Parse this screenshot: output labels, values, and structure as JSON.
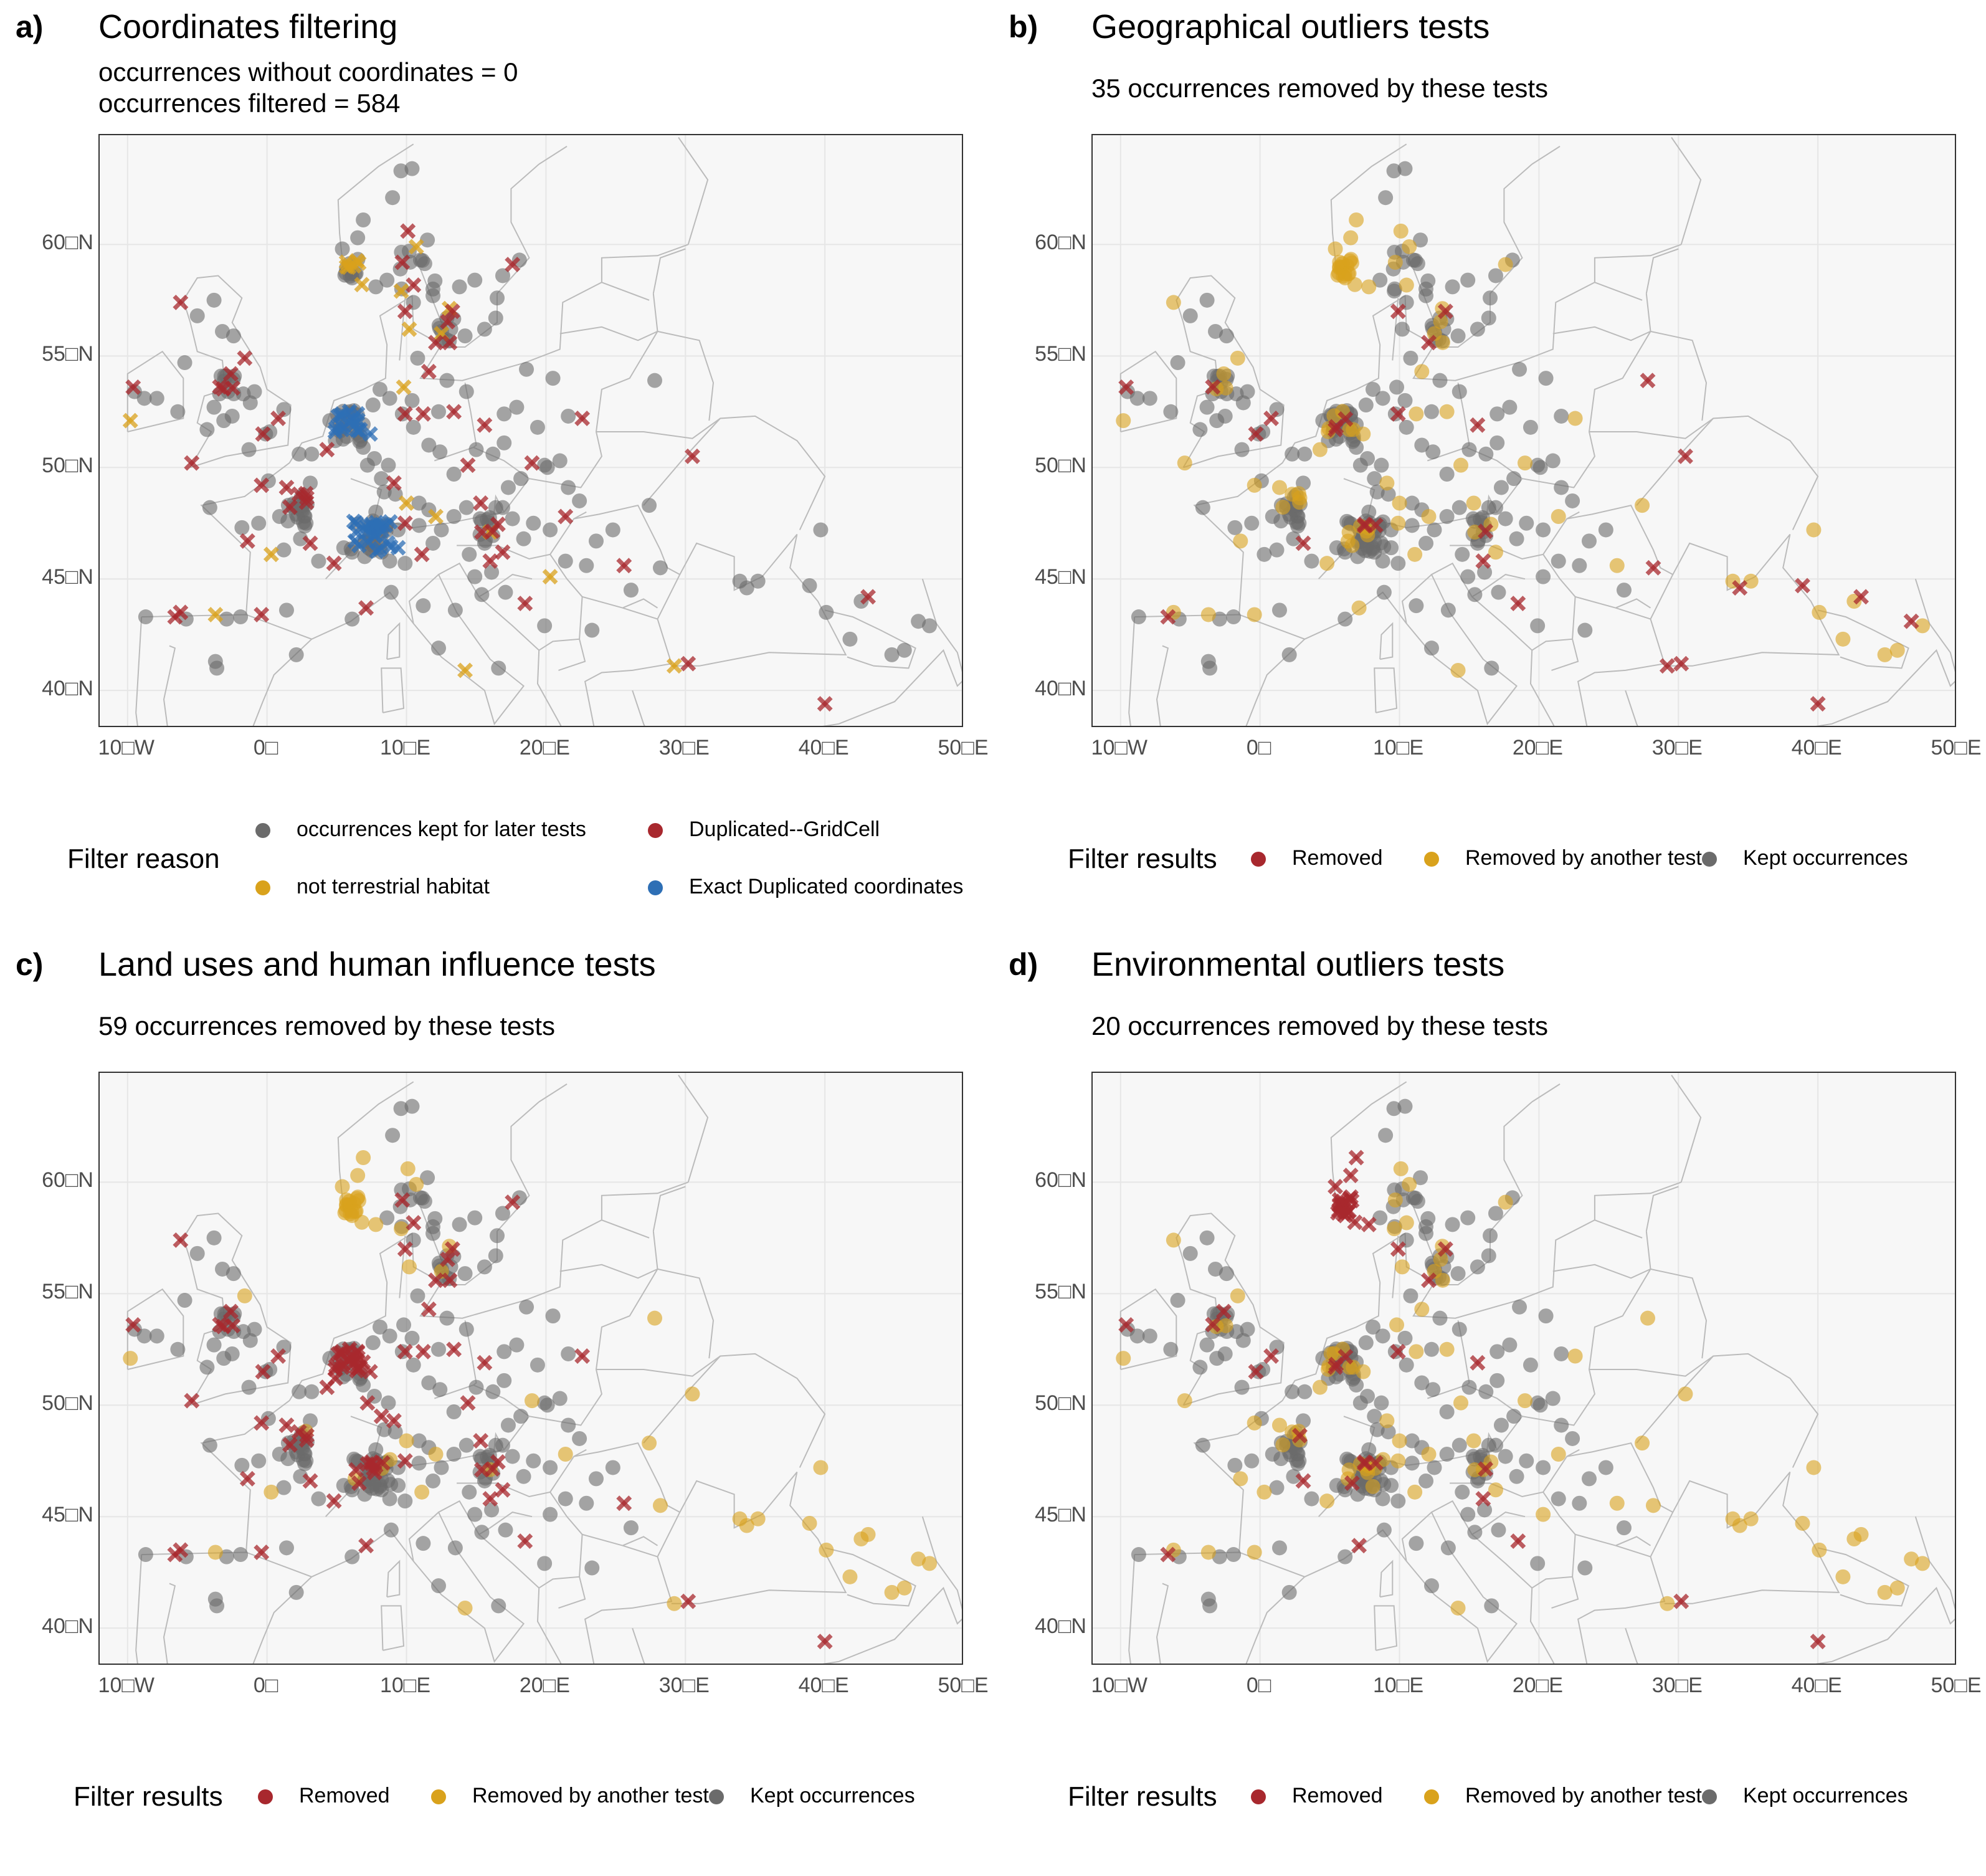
{
  "colors": {
    "kept": "#6b6b6b",
    "removed": "#a8282e",
    "removed_other": "#d9a21c",
    "exact_dup": "#2e6fb5",
    "land_fill": "#f7f7f7",
    "border": "#bbbbbb",
    "grid": "#e6e6e6"
  },
  "axes": {
    "x_ticks": [
      "10□W",
      "0□",
      "10□E",
      "20□E",
      "30□E",
      "40□E",
      "50□E"
    ],
    "x_values": [
      -10,
      0,
      10,
      20,
      30,
      40,
      50
    ],
    "y_ticks": [
      "60□N",
      "55□N",
      "50□N",
      "45□N",
      "40□N"
    ],
    "y_values": [
      60,
      55,
      50,
      45,
      40
    ],
    "xlim": [
      -12,
      50
    ],
    "ylim": [
      38.3,
      64.9
    ]
  },
  "panels": [
    {
      "tag": "a)",
      "title": "Coordinates filtering",
      "subtitle_lines": [
        "occurrences without coordinates = 0",
        "occurrences filtered =  584"
      ],
      "legend_title": "Filter reason",
      "legend_items": [
        {
          "label": "occurrences kept for later tests",
          "color": "#6b6b6b"
        },
        {
          "label": "Duplicated--GridCell",
          "color": "#a8282e"
        },
        {
          "label": "not terrestrial habitat",
          "color": "#d9a21c"
        },
        {
          "label": "Exact Duplicated coordinates",
          "color": "#2e6fb5"
        }
      ]
    },
    {
      "tag": "b)",
      "title": "Geographical outliers tests",
      "subtitle_lines": [
        "35 occurrences removed by these tests"
      ],
      "legend_title": "Filter results",
      "legend_items": [
        {
          "label": "Removed",
          "color": "#a8282e"
        },
        {
          "label": "Removed by another test",
          "color": "#d9a21c"
        },
        {
          "label": "Kept occurrences",
          "color": "#6b6b6b"
        }
      ]
    },
    {
      "tag": "c)",
      "title": "Land uses and human influence tests",
      "subtitle_lines": [
        "59 occurrences removed by these tests"
      ],
      "legend_title": "Filter results",
      "legend_items": [
        {
          "label": "Removed",
          "color": "#a8282e"
        },
        {
          "label": "Removed by another test",
          "color": "#d9a21c"
        },
        {
          "label": "Kept occurrences",
          "color": "#6b6b6b"
        }
      ]
    },
    {
      "tag": "d)",
      "title": "Environmental outliers tests",
      "subtitle_lines": [
        "20 occurrences removed by these tests"
      ],
      "legend_title": "Filter results",
      "legend_items": [
        {
          "label": "Removed",
          "color": "#a8282e"
        },
        {
          "label": "Removed by another test",
          "color": "#d9a21c"
        },
        {
          "label": "Kept occurrences",
          "color": "#6b6b6b"
        }
      ]
    }
  ]
}
